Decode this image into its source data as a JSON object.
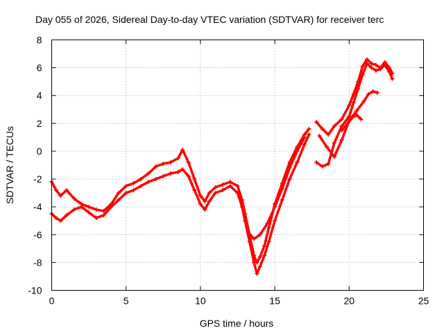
{
  "chart_data": {
    "type": "scatter",
    "title": "Day 055 of 2026, Sidereal Day-to-day VTEC variation (SDTVAR) for receiver terc",
    "xlabel": "GPS time / hours",
    "ylabel": "SDTVAR / TECUs",
    "xlim": [
      0,
      25
    ],
    "ylim": [
      -10,
      8
    ],
    "xticks": [
      "0",
      "5",
      "10",
      "15",
      "20",
      "25"
    ],
    "yticks": [
      "-10",
      "-8",
      "-6",
      "-4",
      "-2",
      "0",
      "2",
      "4",
      "6",
      "8"
    ],
    "grid": true,
    "marker": "plus",
    "color": "#ff0000",
    "series": [
      {
        "x": [
          0.0,
          0.3,
          0.6,
          1.0,
          1.5,
          2.0,
          2.5,
          3.0,
          3.5,
          4.0,
          4.5,
          5.0,
          5.5,
          6.0,
          6.5,
          7.0,
          7.5,
          8.0,
          8.5,
          8.8,
          9.2,
          9.6,
          10.0,
          10.3,
          10.6,
          11.0,
          11.5,
          12.0,
          12.5,
          12.8,
          13.0,
          13.3,
          13.6,
          13.8,
          14.0,
          14.3,
          14.6,
          15.0,
          15.5,
          16.0,
          16.5,
          17.0,
          17.3
        ],
        "y": [
          -4.5,
          -4.8,
          -5.0,
          -4.6,
          -4.2,
          -4.0,
          -4.4,
          -4.8,
          -4.6,
          -4.0,
          -3.5,
          -3.0,
          -2.8,
          -2.5,
          -2.2,
          -2.0,
          -1.8,
          -1.6,
          -1.5,
          -1.3,
          -1.8,
          -2.8,
          -3.8,
          -4.2,
          -3.6,
          -3.0,
          -2.8,
          -2.5,
          -3.0,
          -4.0,
          -5.0,
          -6.5,
          -8.0,
          -8.8,
          -8.3,
          -7.5,
          -6.5,
          -5.0,
          -3.5,
          -2.0,
          -0.8,
          0.5,
          1.2
        ]
      },
      {
        "x": [
          0.0,
          0.3,
          0.6,
          1.0,
          1.5,
          2.0,
          2.5,
          3.0,
          3.5,
          4.0,
          4.5,
          5.0,
          5.5,
          6.0,
          6.5,
          7.0,
          7.5,
          8.0,
          8.5,
          8.8,
          9.2,
          9.6,
          10.0,
          10.3,
          10.6,
          11.0,
          11.5,
          12.0,
          12.5,
          12.8,
          13.0,
          13.3,
          13.6,
          13.8,
          14.0,
          14.3,
          14.6,
          15.0,
          15.5,
          16.0,
          16.5,
          17.0,
          17.3
        ],
        "y": [
          -2.2,
          -2.8,
          -3.2,
          -2.8,
          -3.4,
          -3.8,
          -4.0,
          -4.2,
          -4.3,
          -3.8,
          -3.0,
          -2.5,
          -2.3,
          -2.0,
          -1.6,
          -1.1,
          -0.9,
          -0.8,
          -0.5,
          0.1,
          -0.8,
          -2.0,
          -3.2,
          -3.6,
          -3.0,
          -2.6,
          -2.4,
          -2.2,
          -2.5,
          -3.5,
          -4.5,
          -6.0,
          -7.5,
          -8.0,
          -7.6,
          -6.8,
          -5.5,
          -3.8,
          -2.3,
          -0.8,
          0.3,
          1.2,
          1.6
        ]
      },
      {
        "x": [
          13.2,
          13.6,
          14.0,
          14.5,
          15.0,
          15.5,
          16.0,
          16.5,
          17.0
        ],
        "y": [
          -5.8,
          -6.3,
          -6.0,
          -5.2,
          -4.0,
          -2.7,
          -1.2,
          0.0,
          1.0
        ]
      },
      {
        "x": [
          17.8,
          18.2,
          18.6,
          19.0,
          19.5,
          20.0,
          20.3,
          20.6,
          20.9,
          21.2,
          21.5,
          21.8,
          22.1,
          22.4,
          22.7,
          22.9
        ],
        "y": [
          -0.8,
          -1.1,
          -0.9,
          0.6,
          1.8,
          2.5,
          3.5,
          4.5,
          5.5,
          6.3,
          6.0,
          5.8,
          5.9,
          6.2,
          5.7,
          5.2
        ]
      },
      {
        "x": [
          17.8,
          18.2,
          18.6,
          19.0,
          19.5,
          20.0,
          20.3,
          20.6,
          20.9,
          21.2,
          21.5,
          21.8,
          22.1,
          22.4,
          22.7,
          22.9
        ],
        "y": [
          2.1,
          1.6,
          1.2,
          1.8,
          2.3,
          3.3,
          4.1,
          5.0,
          6.1,
          6.6,
          6.3,
          6.2,
          6.0,
          6.4,
          6.0,
          5.6
        ]
      },
      {
        "x": [
          18.0,
          18.5,
          19.0,
          19.5,
          20.0,
          20.5,
          21.0,
          21.3,
          21.6,
          21.9
        ],
        "y": [
          1.1,
          0.3,
          -0.4,
          0.8,
          2.2,
          2.9,
          3.6,
          4.1,
          4.3,
          4.2
        ]
      },
      {
        "x": [
          19.5,
          19.9,
          20.2,
          20.5,
          20.8
        ],
        "y": [
          1.5,
          2.0,
          2.4,
          2.6,
          2.3
        ]
      }
    ]
  }
}
